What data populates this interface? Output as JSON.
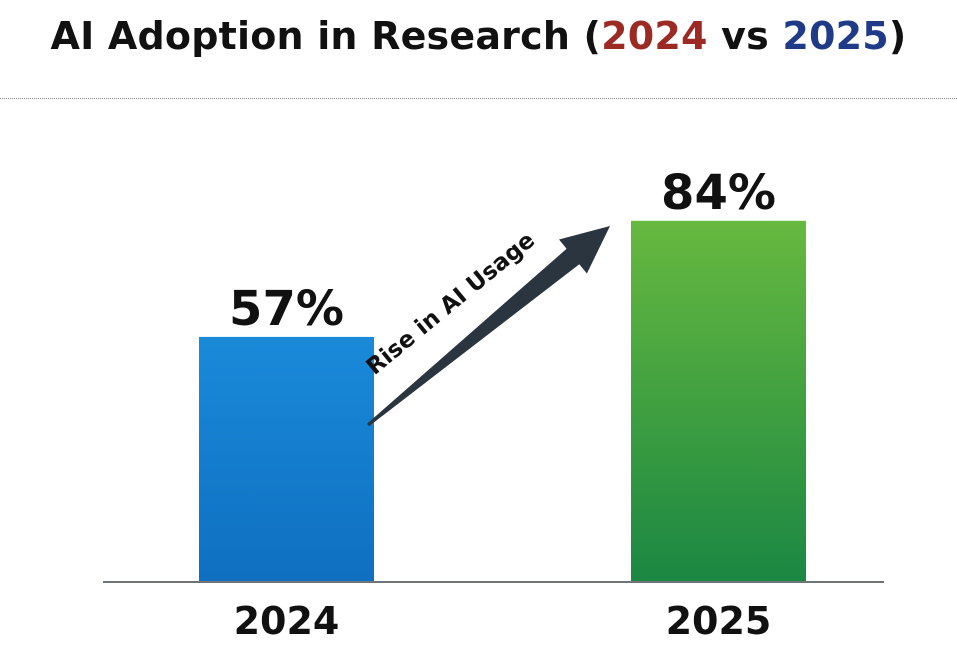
{
  "title": {
    "prefix": "AI Adoption in Research (",
    "year1": "2024",
    "middle": " vs ",
    "year2": "2025",
    "suffix": ")"
  },
  "colors": {
    "year1_title": "#9b2a25",
    "year2_title": "#1f3a87",
    "bar_2024_top": "#1a8ad9",
    "bar_2024_bottom": "#0f6fc0",
    "bar_2025_top": "#67b93f",
    "bar_2025_bottom": "#1a8742",
    "arrow": "#2a3540",
    "baseline": "#6f7478"
  },
  "chart_data": {
    "type": "bar",
    "categories": [
      "2024",
      "2025"
    ],
    "values": [
      57,
      84
    ],
    "value_labels": [
      "57%",
      "84%"
    ],
    "unit": "%",
    "ylim": [
      0,
      100
    ],
    "grid": false,
    "annotation": "Rise in AI Usage"
  }
}
